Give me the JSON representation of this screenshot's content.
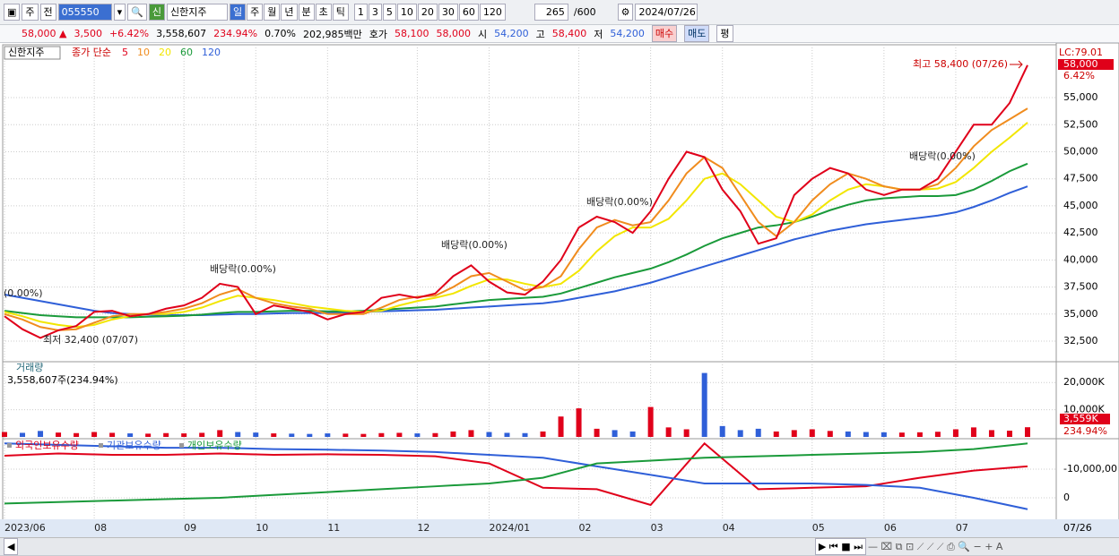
{
  "toolbar": {
    "buttons_left": [
      "주",
      "전"
    ],
    "code": "055550",
    "tag": "신",
    "name": "신한지주",
    "periods": [
      "일",
      "주",
      "월",
      "년",
      "분",
      "초",
      "틱"
    ],
    "numbers": [
      "1",
      "3",
      "5",
      "10",
      "20",
      "30",
      "60",
      "120"
    ],
    "count": "265",
    "max": "/600",
    "date": "2024/07/26"
  },
  "quote": {
    "price": "58,000 ▲",
    "change": "3,500",
    "rate": "+6.42%",
    "volume": "3,558,607",
    "volume_rate": "234.94%",
    "turnover": "0.70%",
    "amount": "202,985백만",
    "ask_label": "호가",
    "ask": "58,100",
    "bid": "58,000",
    "open_label": "시",
    "open": "54,200",
    "high_label": "고",
    "high": "58,400",
    "low_label": "저",
    "low": "54,200",
    "buy": "매수",
    "sell": "매도",
    "avg": "평"
  },
  "chart_data": [
    {
      "type": "line",
      "title": "신한지주",
      "legend_title": "종가 단순",
      "categories": [
        "2023/06",
        null,
        null,
        null,
        null,
        "08",
        null,
        null,
        null,
        null,
        "09",
        null,
        null,
        null,
        "10",
        null,
        null,
        null,
        "11",
        null,
        null,
        null,
        null,
        "12",
        null,
        null,
        null,
        "2024/01",
        null,
        null,
        null,
        null,
        "02",
        null,
        null,
        null,
        "03",
        null,
        null,
        null,
        "04",
        null,
        null,
        null,
        null,
        "05",
        null,
        null,
        null,
        "06",
        null,
        null,
        null,
        "07",
        null,
        null,
        null,
        null
      ],
      "last_date": "07/26",
      "series": [
        {
          "name": "5",
          "color": "#e0001a",
          "values": [
            34800,
            33600,
            32800,
            33500,
            33900,
            35200,
            35300,
            34800,
            35000,
            35500,
            35800,
            36500,
            37800,
            37500,
            35000,
            35800,
            35500,
            35200,
            34500,
            35000,
            35200,
            36500,
            36800,
            36500,
            36900,
            38500,
            39500,
            38000,
            37000,
            36800,
            38000,
            40000,
            43000,
            44000,
            43500,
            42500,
            44500,
            47500,
            50000,
            49500,
            46500,
            44500,
            41500,
            42000,
            46000,
            47500,
            48500,
            48000,
            46500,
            46000,
            46500,
            46500,
            47500,
            50000,
            52500,
            52500,
            54500,
            58000
          ]
        },
        {
          "name": "10",
          "color": "#f08c1e",
          "values": [
            35000,
            34500,
            33800,
            33500,
            33600,
            34200,
            34800,
            35000,
            35000,
            35200,
            35500,
            36000,
            36800,
            37300,
            36500,
            36000,
            35700,
            35500,
            35000,
            35000,
            35000,
            35600,
            36300,
            36600,
            36700,
            37500,
            38500,
            38800,
            38000,
            37200,
            37500,
            38500,
            41000,
            43000,
            43700,
            43200,
            43500,
            45500,
            48000,
            49500,
            48500,
            46000,
            43500,
            42200,
            43500,
            45500,
            47000,
            48000,
            47500,
            46800,
            46500,
            46500,
            47000,
            48500,
            50500,
            52000,
            53000,
            54000
          ]
        },
        {
          "name": "20",
          "color": "#f2e600",
          "values": [
            35200,
            34800,
            34300,
            34000,
            33800,
            34000,
            34500,
            34800,
            35000,
            35000,
            35200,
            35600,
            36200,
            36700,
            36500,
            36300,
            36000,
            35700,
            35500,
            35300,
            35200,
            35300,
            35800,
            36200,
            36500,
            36900,
            37600,
            38200,
            38200,
            37800,
            37500,
            37800,
            39000,
            40800,
            42200,
            43000,
            43000,
            43800,
            45500,
            47500,
            48000,
            47000,
            45500,
            44000,
            43500,
            44200,
            45500,
            46500,
            47000,
            46800,
            46500,
            46500,
            46600,
            47200,
            48500,
            50000,
            51300,
            52700
          ]
        },
        {
          "name": "60",
          "color": "#1a9a3a",
          "values": [
            35300,
            35100,
            34900,
            34800,
            34700,
            34700,
            34700,
            34700,
            34750,
            34800,
            34850,
            34950,
            35100,
            35200,
            35200,
            35250,
            35300,
            35300,
            35250,
            35250,
            35300,
            35400,
            35500,
            35600,
            35700,
            35900,
            36100,
            36300,
            36400,
            36500,
            36600,
            36900,
            37400,
            37900,
            38400,
            38800,
            39200,
            39800,
            40500,
            41300,
            42000,
            42500,
            43000,
            43200,
            43500,
            44000,
            44600,
            45100,
            45500,
            45700,
            45800,
            45900,
            45900,
            46000,
            46500,
            47300,
            48200,
            48900
          ]
        },
        {
          "name": "120",
          "color": "#2f5fd8",
          "values": [
            36800,
            36500,
            36200,
            35900,
            35600,
            35300,
            35100,
            35000,
            34950,
            34900,
            34900,
            34900,
            34950,
            35000,
            35000,
            35050,
            35100,
            35100,
            35100,
            35150,
            35200,
            35250,
            35300,
            35350,
            35400,
            35500,
            35600,
            35700,
            35800,
            35900,
            36000,
            36200,
            36500,
            36800,
            37100,
            37500,
            37900,
            38400,
            38900,
            39400,
            39900,
            40400,
            40900,
            41400,
            41900,
            42300,
            42700,
            43000,
            43300,
            43500,
            43700,
            43900,
            44100,
            44400,
            44900,
            45500,
            46200,
            46800
          ]
        }
      ],
      "ylim": [
        30680,
        59720
      ],
      "yticks": [
        {
          "value": 32500,
          "label": "32,500"
        },
        {
          "value": 35000,
          "label": "35,000"
        },
        {
          "value": 37500,
          "label": "37,500"
        },
        {
          "value": 40000,
          "label": "40,000"
        },
        {
          "value": 42500,
          "label": "42,500"
        },
        {
          "value": 45000,
          "label": "45,000"
        },
        {
          "value": 47500,
          "label": "47,500"
        },
        {
          "value": 50000,
          "label": "50,000"
        },
        {
          "value": 52500,
          "label": "52,500"
        },
        {
          "value": 55000,
          "label": "55,000"
        }
      ],
      "annotations": [
        "최고 58,400 (07/26)",
        "최저 32,400 (07/07)",
        "(0.00%)",
        "배당락(0.00%)",
        "배당락(0.00%)",
        "배당락(0.00%)",
        "배당락(0.00%)"
      ],
      "right_labels": [
        "LC:79.01",
        "58,000",
        "6.42%"
      ],
      "grid": true
    },
    {
      "type": "bar",
      "title": "거래량",
      "subtitle": "3,558,607주(234.94%)",
      "values": [
        1800,
        1500,
        2200,
        1600,
        1400,
        1800,
        1500,
        1300,
        1200,
        1400,
        1300,
        1500,
        2500,
        1800,
        1600,
        1300,
        1200,
        1100,
        1300,
        1200,
        1100,
        1400,
        1500,
        1300,
        1400,
        2000,
        2500,
        1800,
        1500,
        1400,
        2000,
        7500,
        10500,
        3000,
        2500,
        2000,
        11000,
        3500,
        2800,
        23500,
        4000,
        2500,
        3000,
        2000,
        2500,
        2800,
        2200,
        2000,
        1800,
        1700,
        1600,
        1700,
        1900,
        2800,
        3500,
        2500,
        2300,
        3559
      ],
      "value_labels": {
        "57": "3,559K"
      },
      "last_rate": "234.94%",
      "up_color": "#e0001a",
      "down_color": "#2f5fd8",
      "ylim": [
        0,
        26000
      ],
      "yticks": [
        {
          "value": 10000,
          "label": "10,000K"
        },
        {
          "value": 20000,
          "label": "20,000K"
        }
      ]
    },
    {
      "type": "line",
      "series": [
        {
          "name": "외국인보유수량",
          "color": "#e0001a",
          "values": [
            -14700000,
            -15500000,
            -15000000,
            -15000000,
            -15500000,
            -15000000,
            -15200000,
            -15000000,
            -14500000,
            -12000000,
            -3500000,
            -3000000,
            2500000,
            -19000000,
            -3000000,
            -3500000,
            -4000000,
            -7000000,
            -9500000,
            -11000000
          ]
        },
        {
          "name": "기관보유수량",
          "color": "#2f5fd8",
          "values": [
            -19000000,
            -18500000,
            -18000000,
            -17500000,
            -17500000,
            -17000000,
            -16800000,
            -16500000,
            -16000000,
            -15000000,
            -14000000,
            -11000000,
            -8000000,
            -5000000,
            -5000000,
            -5000000,
            -4500000,
            -3500000,
            0,
            4000000
          ]
        },
        {
          "name": "개인보유수량",
          "color": "#1a9a3a",
          "values": [
            2000000,
            1500000,
            1000000,
            500000,
            0,
            -1000000,
            -2000000,
            -3000000,
            -4000000,
            -5000000,
            -7000000,
            -12000000,
            -13000000,
            -14000000,
            -14500000,
            -15000000,
            -15500000,
            -16000000,
            -17000000,
            -19000000
          ]
        }
      ],
      "ylim": [
        6900000,
        -19400000
      ],
      "yticks": [
        0,
        {
          "value": -10000000,
          "label": "-10,000,00"
        }
      ]
    }
  ]
}
